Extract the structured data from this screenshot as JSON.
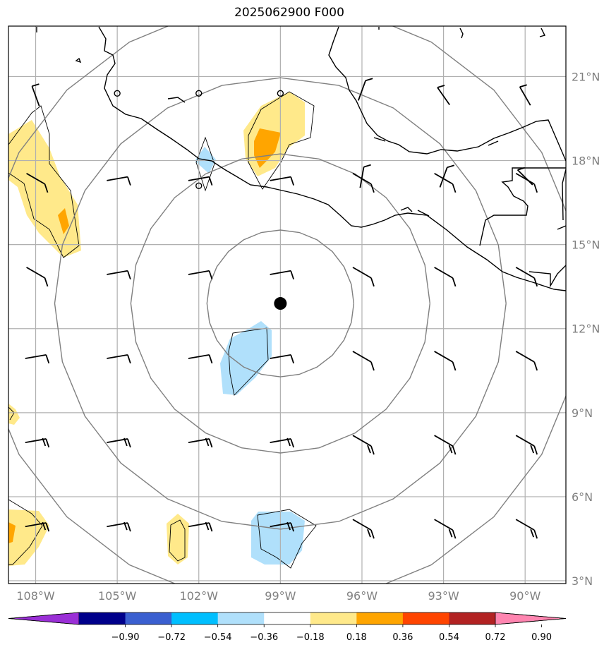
{
  "title": "2025062900 F000",
  "map": {
    "lon_range": [
      -109,
      -88.5
    ],
    "lat_range": [
      2.9,
      22.8
    ],
    "lon_ticks": [
      {
        "value": -108,
        "label": "108°W"
      },
      {
        "value": -105,
        "label": "105°W"
      },
      {
        "value": -102,
        "label": "102°W"
      },
      {
        "value": -99,
        "label": "99°W"
      },
      {
        "value": -96,
        "label": "96°W"
      },
      {
        "value": -93,
        "label": "93°W"
      },
      {
        "value": -90,
        "label": "90°W"
      }
    ],
    "lat_ticks": [
      {
        "value": 3,
        "label": "3°N"
      },
      {
        "value": 6,
        "label": "6°N"
      },
      {
        "value": 9,
        "label": "9°N"
      },
      {
        "value": 12,
        "label": "12°N"
      },
      {
        "value": 15,
        "label": "15°N"
      },
      {
        "value": 18,
        "label": "18°N"
      },
      {
        "value": 21,
        "label": "21°N"
      }
    ],
    "gridlines": true,
    "center_marker": {
      "lon": -99,
      "lat": 12.9
    },
    "range_rings_deg": [
      2.7,
      5.5,
      8.3,
      11.1
    ],
    "colors": {
      "land_outline": "#000000",
      "grid": "#b0b0b0",
      "rings": "#808080",
      "pos_weak": "#ffe98a",
      "pos_mid": "#ffa500",
      "neg_weak": "#b0e0fb"
    }
  },
  "colorbar": {
    "ticks": [
      "−0.90",
      "−0.72",
      "−0.54",
      "−0.36",
      "−0.18",
      "0.18",
      "0.36",
      "0.54",
      "0.72",
      "0.90"
    ],
    "colors": [
      "#9a2fd6",
      "#00008b",
      "#3a5fd0",
      "#00bfff",
      "#b0e0fb",
      "#ffffff",
      "#ffe98a",
      "#ffa500",
      "#ff4500",
      "#b22222",
      "#ff85b0"
    ]
  }
}
